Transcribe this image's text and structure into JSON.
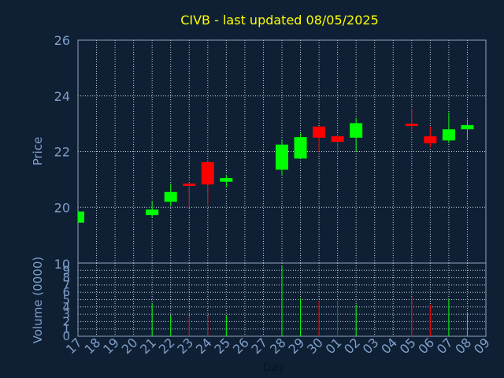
{
  "chart_data": {
    "type": "candlestick",
    "title": "CIVB - last updated 08/05/2025",
    "xlabel": "Day",
    "ylabel_price": "Price",
    "ylabel_volume": "Volume (0000)",
    "price_ylim": [
      18,
      26
    ],
    "price_ticks": [
      "20",
      "22",
      "24",
      "26"
    ],
    "volume_ylim": [
      0,
      10
    ],
    "volume_ticks": [
      "0",
      "1",
      "2",
      "3",
      "4",
      "5",
      "6",
      "7",
      "8",
      "9",
      "10"
    ],
    "x_ticks": [
      "17",
      "18",
      "19",
      "20",
      "21",
      "22",
      "23",
      "24",
      "25",
      "26",
      "27",
      "28",
      "29",
      "30",
      "01",
      "02",
      "03",
      "04",
      "05",
      "06",
      "07",
      "08",
      "09"
    ],
    "grid": true,
    "colors": {
      "background": "#0f2035",
      "plot_border": "#8fa3bf",
      "grid": "#c8d0d8",
      "title": "#ffff00",
      "axis_text": "#7f9fc8",
      "up": "#00ff00",
      "down": "#ff0000"
    },
    "candles": [
      {
        "x": "17",
        "open": 19.45,
        "close": 19.85,
        "high": 19.85,
        "low": 19.45,
        "volume": null
      },
      {
        "x": "21",
        "open": 19.72,
        "close": 19.92,
        "high": 20.22,
        "low": 19.62,
        "volume": 4.5
      },
      {
        "x": "22",
        "open": 20.2,
        "close": 20.55,
        "high": 20.85,
        "low": 20.05,
        "volume": 2.8
      },
      {
        "x": "23",
        "open": 20.85,
        "close": 20.77,
        "high": 20.9,
        "low": 20.0,
        "volume": 2.8
      },
      {
        "x": "24",
        "open": 21.62,
        "close": 20.82,
        "high": 21.65,
        "low": 20.12,
        "volume": 2.8
      },
      {
        "x": "25",
        "open": 20.92,
        "close": 21.05,
        "high": 21.15,
        "low": 20.72,
        "volume": 2.8
      },
      {
        "x": "28",
        "open": 21.35,
        "close": 22.25,
        "high": 22.45,
        "low": 21.15,
        "volume": 9.6
      },
      {
        "x": "29",
        "open": 21.75,
        "close": 22.52,
        "high": 22.65,
        "low": 21.75,
        "volume": 5.2
      },
      {
        "x": "30",
        "open": 22.9,
        "close": 22.5,
        "high": 22.9,
        "low": 22.0,
        "volume": 4.8
      },
      {
        "x": "01",
        "open": 22.55,
        "close": 22.35,
        "high": 22.55,
        "low": 21.95,
        "volume": 4.9
      },
      {
        "x": "02",
        "open": 22.5,
        "close": 23.02,
        "high": 23.2,
        "low": 22.0,
        "volume": 4.3
      },
      {
        "x": "05",
        "open": 23.0,
        "close": 22.92,
        "high": 23.55,
        "low": 22.75,
        "volume": 5.4
      },
      {
        "x": "06",
        "open": 22.55,
        "close": 22.3,
        "high": 22.9,
        "low": 22.15,
        "volume": 4.3
      },
      {
        "x": "07",
        "open": 22.4,
        "close": 22.8,
        "high": 23.4,
        "low": 22.3,
        "volume": 5.1
      },
      {
        "x": "08",
        "open": 22.8,
        "close": 22.95,
        "high": 23.15,
        "low": 22.45,
        "volume": 3.3
      }
    ]
  }
}
